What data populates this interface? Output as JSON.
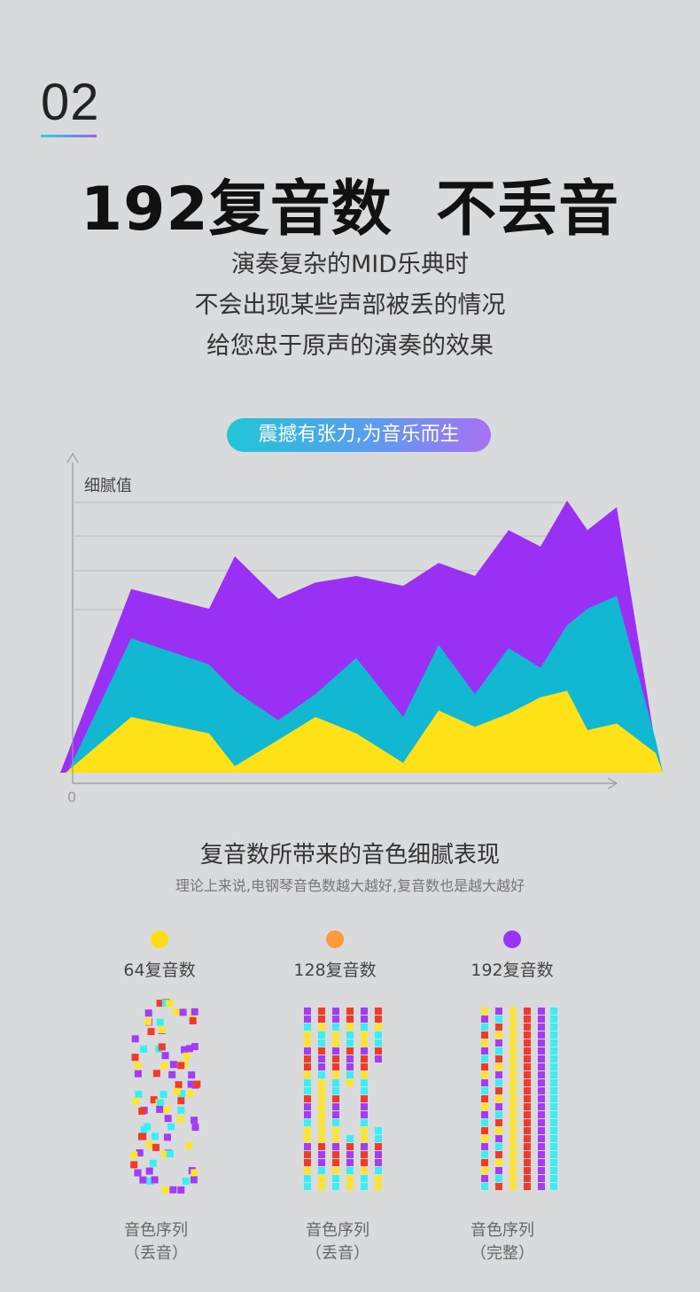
{
  "section": {
    "number": "02"
  },
  "headline": "192复音数  不丢音",
  "intro": {
    "lines": [
      "演奏复杂的MID乐典时",
      "不会出现某些声部被丢的情况",
      "给您忠于原声的演奏的效果"
    ]
  },
  "pill": "震撼有张力,为音乐而生",
  "chart_data": {
    "type": "area",
    "ylabel": "细腻值",
    "origin_label": "0",
    "gridlines": true,
    "x": [
      0,
      1,
      2,
      3,
      4,
      5,
      6,
      7,
      8,
      9,
      10,
      11,
      12,
      13,
      14,
      15,
      16
    ],
    "series": [
      {
        "values": [
          0.0,
          5.6,
          5.0,
          6.6,
          5.3,
          5.8,
          6.0,
          5.7,
          6.4,
          6.0,
          7.4,
          6.9,
          8.3,
          7.4,
          8.1,
          0.8,
          0.0
        ],
        "color": "#9b30f5"
      },
      {
        "values": [
          0.0,
          4.1,
          3.3,
          2.5,
          1.6,
          2.4,
          3.5,
          1.7,
          3.9,
          2.4,
          3.8,
          3.2,
          4.5,
          5.0,
          5.4,
          1.0,
          0.0
        ],
        "color": "#12b8d2"
      },
      {
        "values": [
          0.0,
          1.7,
          1.2,
          0.2,
          1.0,
          1.7,
          1.2,
          0.3,
          1.9,
          1.4,
          1.8,
          2.3,
          2.5,
          1.3,
          1.5,
          0.6,
          0.0
        ],
        "color": "#ffe117"
      }
    ]
  },
  "legend_section": {
    "title": "复音数所带来的音色细腻表现",
    "note": "理论上来说,电钢琴音色数越大越好,复音数也是越大越好"
  },
  "columns": [
    {
      "label": "64复音数",
      "dot_color": "#ffdc18",
      "caption_top": "音色序列",
      "caption_bottom": "（丢音）",
      "mode": "scatter"
    },
    {
      "label": "128复音数",
      "dot_color": "#ff9a3c",
      "caption_top": "音色序列",
      "caption_bottom": "（丢音）",
      "mode": "partial"
    },
    {
      "label": "192复音数",
      "dot_color": "#9b35f5",
      "caption_top": "音色序列",
      "caption_bottom": "（完整）",
      "mode": "full"
    }
  ],
  "palette": [
    "#ffe52a",
    "#a43bf5",
    "#36f0f5",
    "#f23a2a"
  ]
}
